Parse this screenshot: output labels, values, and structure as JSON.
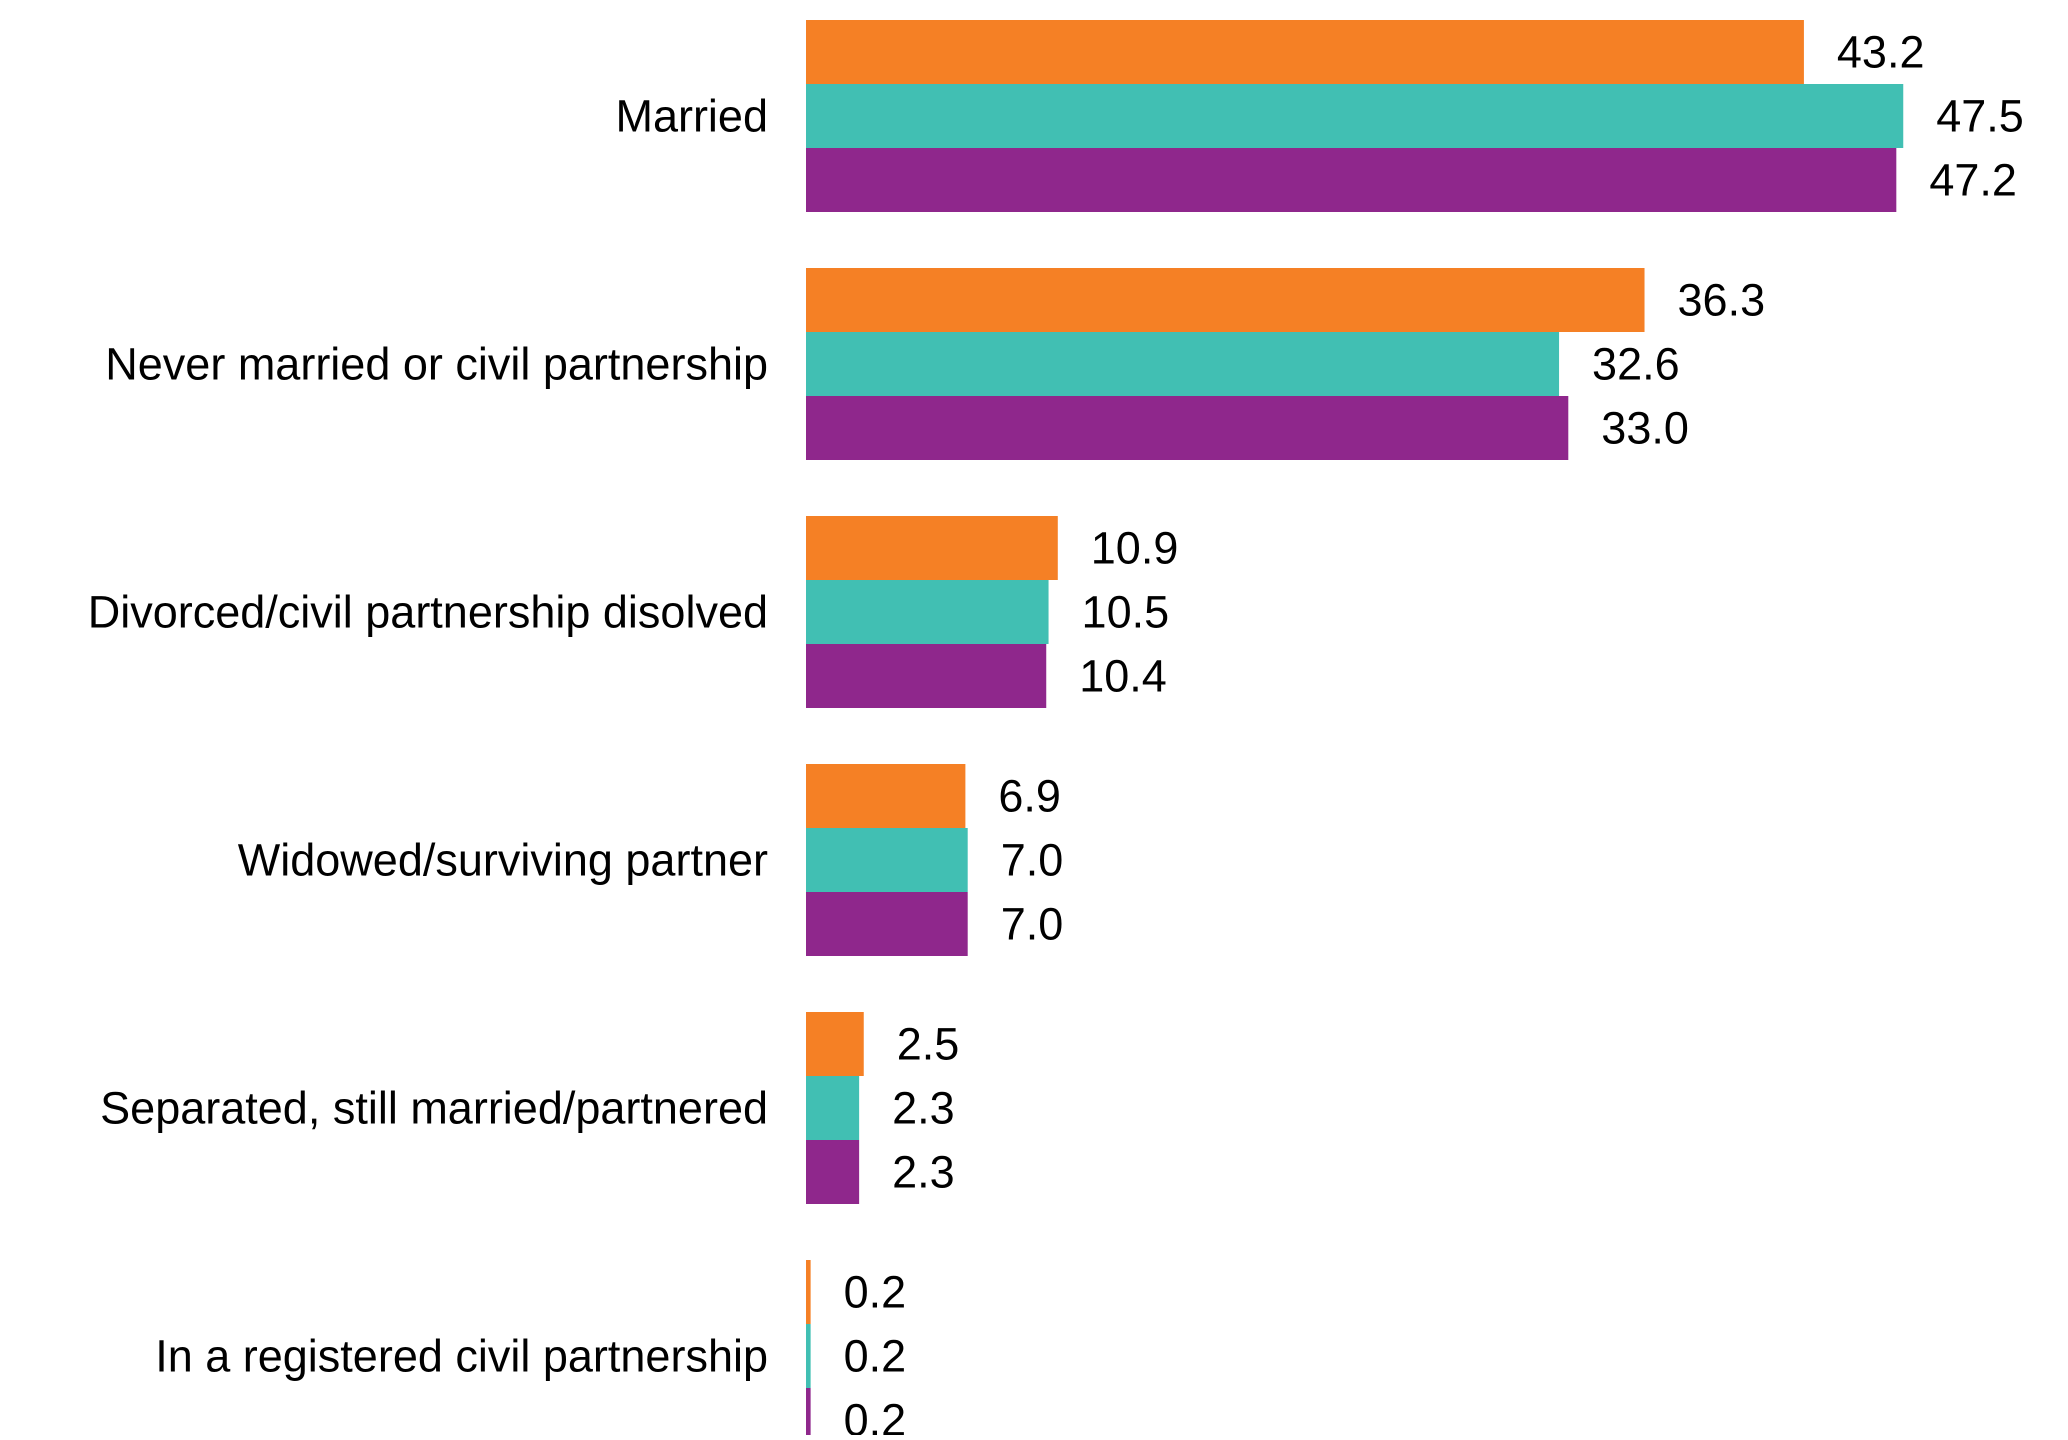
{
  "chart_data": {
    "type": "bar",
    "orientation": "horizontal",
    "title": "",
    "xlabel": "",
    "ylabel": "",
    "grid": false,
    "legend": "none",
    "categories": [
      "Married",
      "Never married or civil partnership",
      "Divorced/civil partnership disolved",
      "Widowed/surviving partner",
      "Separated, still married/partnered",
      "In a registered civil partnership"
    ],
    "value_labels": [
      [
        "43.2",
        "47.5",
        "47.2"
      ],
      [
        "36.3",
        "32.6",
        "33.0"
      ],
      [
        "10.9",
        "10.5",
        "10.4"
      ],
      [
        "6.9",
        "7.0",
        "7.0"
      ],
      [
        "2.5",
        "2.3",
        "2.3"
      ],
      [
        "0.2",
        "0.2",
        "0.2"
      ]
    ],
    "series": [
      {
        "color": "#F58025",
        "values": [
          43.2,
          36.3,
          10.9,
          6.9,
          2.5,
          0.2
        ]
      },
      {
        "color": "#41BFB3",
        "values": [
          47.5,
          32.6,
          10.5,
          7.0,
          2.3,
          0.2
        ]
      },
      {
        "color": "#8F278C",
        "values": [
          47.2,
          33.0,
          10.4,
          7.0,
          2.3,
          0.2
        ]
      }
    ],
    "xlim": [
      0,
      50
    ]
  }
}
